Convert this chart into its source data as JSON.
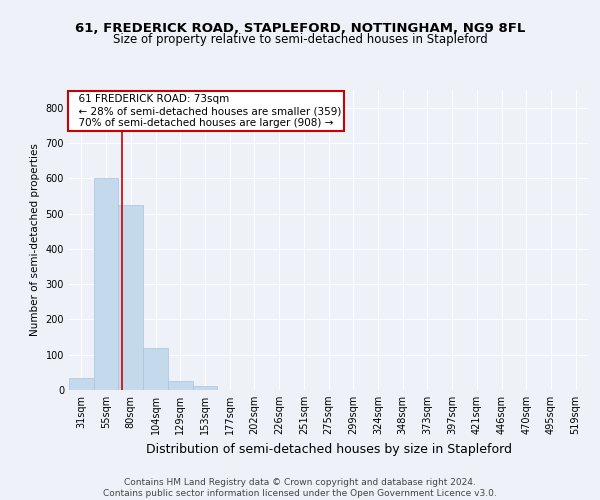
{
  "title": "61, FREDERICK ROAD, STAPLEFORD, NOTTINGHAM, NG9 8FL",
  "subtitle": "Size of property relative to semi-detached houses in Stapleford",
  "xlabel": "Distribution of semi-detached houses by size in Stapleford",
  "ylabel": "Number of semi-detached properties",
  "footer_line1": "Contains HM Land Registry data © Crown copyright and database right 2024.",
  "footer_line2": "Contains public sector information licensed under the Open Government Licence v3.0.",
  "annotation_title": "61 FREDERICK ROAD: 73sqm",
  "annotation_line1": "← 28% of semi-detached houses are smaller (359)",
  "annotation_line2": "70% of semi-detached houses are larger (908) →",
  "bar_labels": [
    "31sqm",
    "55sqm",
    "80sqm",
    "104sqm",
    "129sqm",
    "153sqm",
    "177sqm",
    "202sqm",
    "226sqm",
    "251sqm",
    "275sqm",
    "299sqm",
    "324sqm",
    "348sqm",
    "373sqm",
    "397sqm",
    "421sqm",
    "446sqm",
    "470sqm",
    "495sqm",
    "519sqm"
  ],
  "bar_values": [
    35,
    600,
    525,
    120,
    25,
    10,
    0,
    0,
    0,
    0,
    0,
    0,
    0,
    0,
    0,
    0,
    0,
    0,
    0,
    0,
    0
  ],
  "bar_color": "#c5d9ed",
  "bar_edge_color": "#a8c4de",
  "vline_x": 1.63,
  "vline_color": "#cc0000",
  "annotation_box_color": "#cc0000",
  "background_color": "#eef2f8",
  "ylim": [
    0,
    850
  ],
  "yticks": [
    0,
    100,
    200,
    300,
    400,
    500,
    600,
    700,
    800
  ],
  "grid_color": "#ffffff",
  "title_fontsize": 9.5,
  "subtitle_fontsize": 8.5,
  "xlabel_fontsize": 9,
  "ylabel_fontsize": 7.5,
  "tick_fontsize": 7,
  "annotation_fontsize": 7.5,
  "footer_fontsize": 6.5
}
